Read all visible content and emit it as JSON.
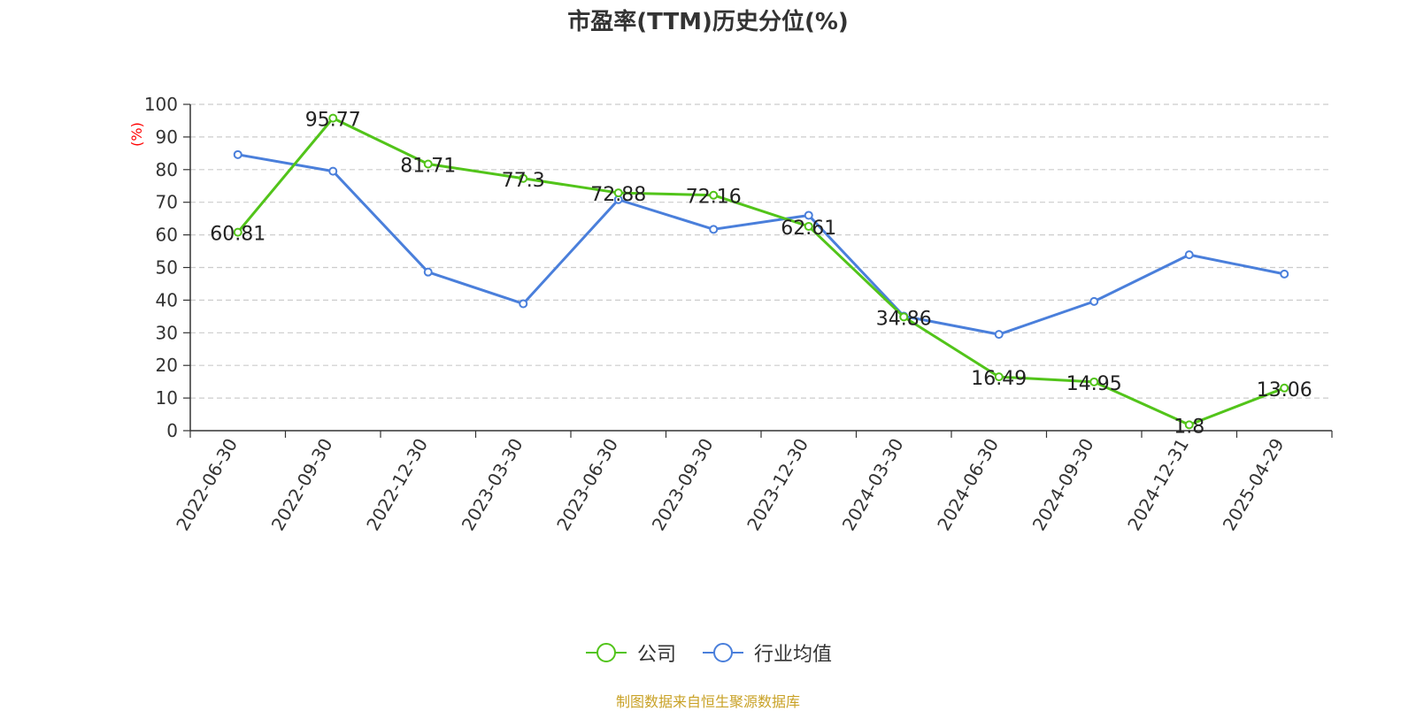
{
  "chart_data": {
    "type": "line",
    "title": "市盈率(TTM)历史分位(%)",
    "ylabel": "(%)",
    "xlabel": "",
    "ylim": [
      0,
      100
    ],
    "yticks": [
      0,
      10,
      20,
      30,
      40,
      50,
      60,
      70,
      80,
      90,
      100
    ],
    "grid": "horizontal dashed",
    "legend_position": "bottom-center",
    "categories": [
      "2022-06-30",
      "2022-09-30",
      "2022-12-30",
      "2023-03-30",
      "2023-06-30",
      "2023-09-30",
      "2023-12-30",
      "2024-03-30",
      "2024-06-30",
      "2024-09-30",
      "2024-12-31",
      "2025-04-29"
    ],
    "series": [
      {
        "name": "公司",
        "color": "#52c41a",
        "show_labels": true,
        "values": [
          60.81,
          95.77,
          81.71,
          77.3,
          72.88,
          72.16,
          62.61,
          34.86,
          16.49,
          14.95,
          1.8,
          13.06
        ],
        "labels": [
          "60.81",
          "95.77",
          "81.71",
          "77.3",
          "72.88",
          "72.16",
          "62.61",
          "34.86",
          "16.49",
          "14.95",
          "1.8",
          "13.06"
        ]
      },
      {
        "name": "行业均值",
        "color": "#4a7fdb",
        "show_labels": false,
        "values": [
          84.6,
          79.5,
          48.6,
          38.9,
          70.8,
          61.7,
          66.0,
          35.1,
          29.5,
          39.6,
          53.9,
          48.0
        ]
      }
    ]
  },
  "source_note": "制图数据来自恒生聚源数据库"
}
